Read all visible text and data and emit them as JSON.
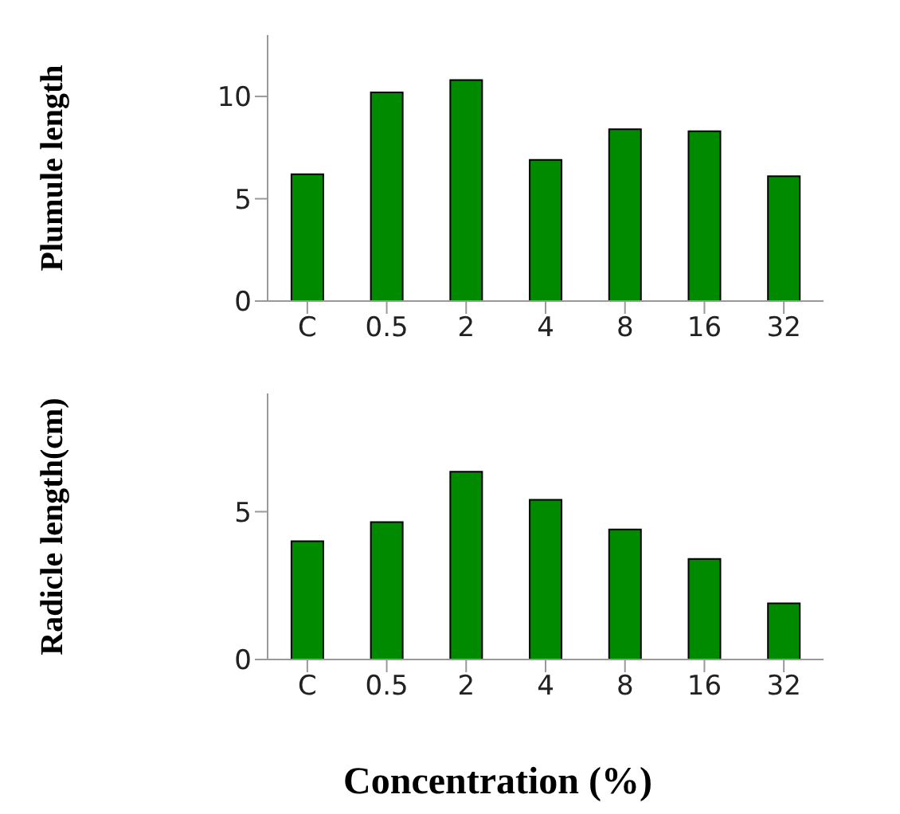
{
  "chart_data": [
    {
      "type": "bar",
      "ylabel": "Plumule length",
      "categories": [
        "C",
        "0.5",
        "2",
        "4",
        "8",
        "16",
        "32"
      ],
      "values": [
        6.2,
        10.2,
        10.8,
        6.9,
        8.4,
        8.3,
        6.1
      ],
      "color": "#008a00",
      "ylim": [
        0,
        13
      ],
      "yticks": [
        0,
        5,
        10
      ],
      "grid": false,
      "legend": false
    },
    {
      "type": "bar",
      "ylabel": "Radicle length(cm)",
      "xlabel": "Concentration (%)",
      "categories": [
        "C",
        "0.5",
        "2",
        "4",
        "8",
        "16",
        "32"
      ],
      "values": [
        4.0,
        4.65,
        6.35,
        5.4,
        4.4,
        3.4,
        1.9
      ],
      "color": "#008a00",
      "ylim": [
        0,
        9
      ],
      "yticks": [
        0,
        5
      ],
      "grid": false,
      "legend": false
    }
  ]
}
